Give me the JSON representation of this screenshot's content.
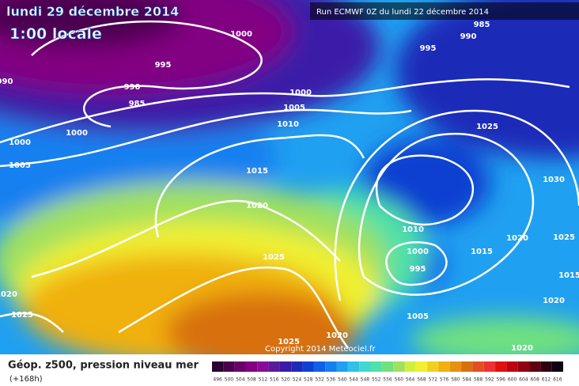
{
  "header": {
    "date": "lundi 29 décembre 2014",
    "time": "1:00 locale",
    "run": "Run ECMWF 0Z du lundi 22 décembre 2014"
  },
  "map": {
    "isobar_labels": [
      "1000",
      "995",
      "990",
      "985",
      "995",
      "990",
      "985",
      "1000",
      "1005",
      "1010",
      "1000",
      "1000",
      "1005",
      "990",
      "1015",
      "1020",
      "1025",
      "1025",
      "1020",
      "1025",
      "1030",
      "1020",
      "1025",
      "1010",
      "1015",
      "1015",
      "1000",
      "995",
      "1005",
      "1020",
      "1020",
      "1025",
      "1020"
    ],
    "copyright": "Copyright 2014 Meteociel.fr"
  },
  "footer": {
    "title": "Géop. z500, pression niveau mer",
    "lead": "(+168h)",
    "scale_labels": [
      496,
      500,
      504,
      508,
      512,
      516,
      520,
      524,
      528,
      532,
      536,
      540,
      544,
      548,
      552,
      556,
      560,
      564,
      568,
      572,
      576,
      580,
      584,
      588,
      592,
      596,
      600,
      604,
      608,
      612,
      616
    ],
    "scale_colors": [
      "#2a0030",
      "#4b0050",
      "#6a006a",
      "#820082",
      "#8a0a9a",
      "#5a1a9a",
      "#3a1aa8",
      "#1e2ab8",
      "#1040d0",
      "#1060e8",
      "#1480f0",
      "#20a0f0",
      "#30c0e8",
      "#40d8d0",
      "#50e0a8",
      "#70e080",
      "#a0e060",
      "#d0f040",
      "#f0f030",
      "#f0d020",
      "#f0b010",
      "#e89010",
      "#d87010",
      "#e05020",
      "#f03030",
      "#e01010",
      "#c00010",
      "#900010",
      "#600010",
      "#300010",
      "#100010"
    ]
  }
}
